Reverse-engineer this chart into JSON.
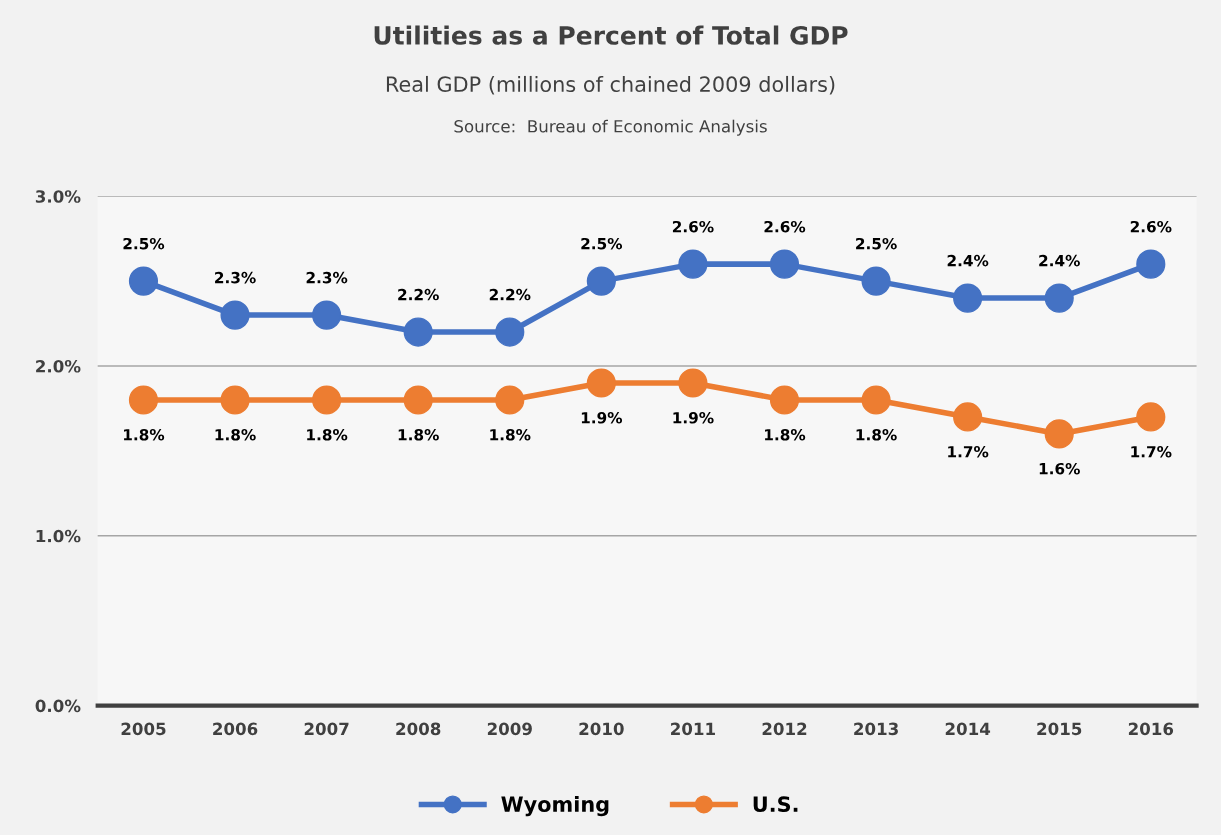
{
  "chart_data": {
    "type": "line",
    "title": "Utilities as a Percent of Total GDP",
    "subtitle": "Real GDP (millions of chained 2009 dollars)",
    "annotations": [
      "Source:  Bureau of Economic Analysis"
    ],
    "categories": [
      "2005",
      "2006",
      "2007",
      "2008",
      "2009",
      "2010",
      "2011",
      "2012",
      "2013",
      "2014",
      "2015",
      "2016"
    ],
    "series": [
      {
        "name": "Wyoming",
        "color": "#4472c4",
        "values": [
          2.5,
          2.3,
          2.3,
          2.2,
          2.2,
          2.5,
          2.6,
          2.6,
          2.5,
          2.4,
          2.4,
          2.6
        ],
        "value_labels": [
          "2.5%",
          "2.3%",
          "2.3%",
          "2.2%",
          "2.2%",
          "2.5%",
          "2.6%",
          "2.6%",
          "2.5%",
          "2.4%",
          "2.4%",
          "2.6%"
        ]
      },
      {
        "name": "U.S.",
        "color": "#ed7d31",
        "values": [
          1.8,
          1.8,
          1.8,
          1.8,
          1.8,
          1.9,
          1.9,
          1.8,
          1.8,
          1.7,
          1.6,
          1.7
        ],
        "value_labels": [
          "1.8%",
          "1.8%",
          "1.8%",
          "1.8%",
          "1.8%",
          "1.9%",
          "1.9%",
          "1.8%",
          "1.8%",
          "1.7%",
          "1.6%",
          "1.7%"
        ]
      }
    ],
    "ylim": [
      0,
      3
    ],
    "yticks": [
      {
        "value": 0,
        "label": "0.0%"
      },
      {
        "value": 1,
        "label": "1.0%"
      },
      {
        "value": 2,
        "label": "2.0%"
      },
      {
        "value": 3,
        "label": "3.0%"
      }
    ],
    "grid": "y",
    "legend": "bottom",
    "marker": "circle",
    "line_style": "solid"
  }
}
